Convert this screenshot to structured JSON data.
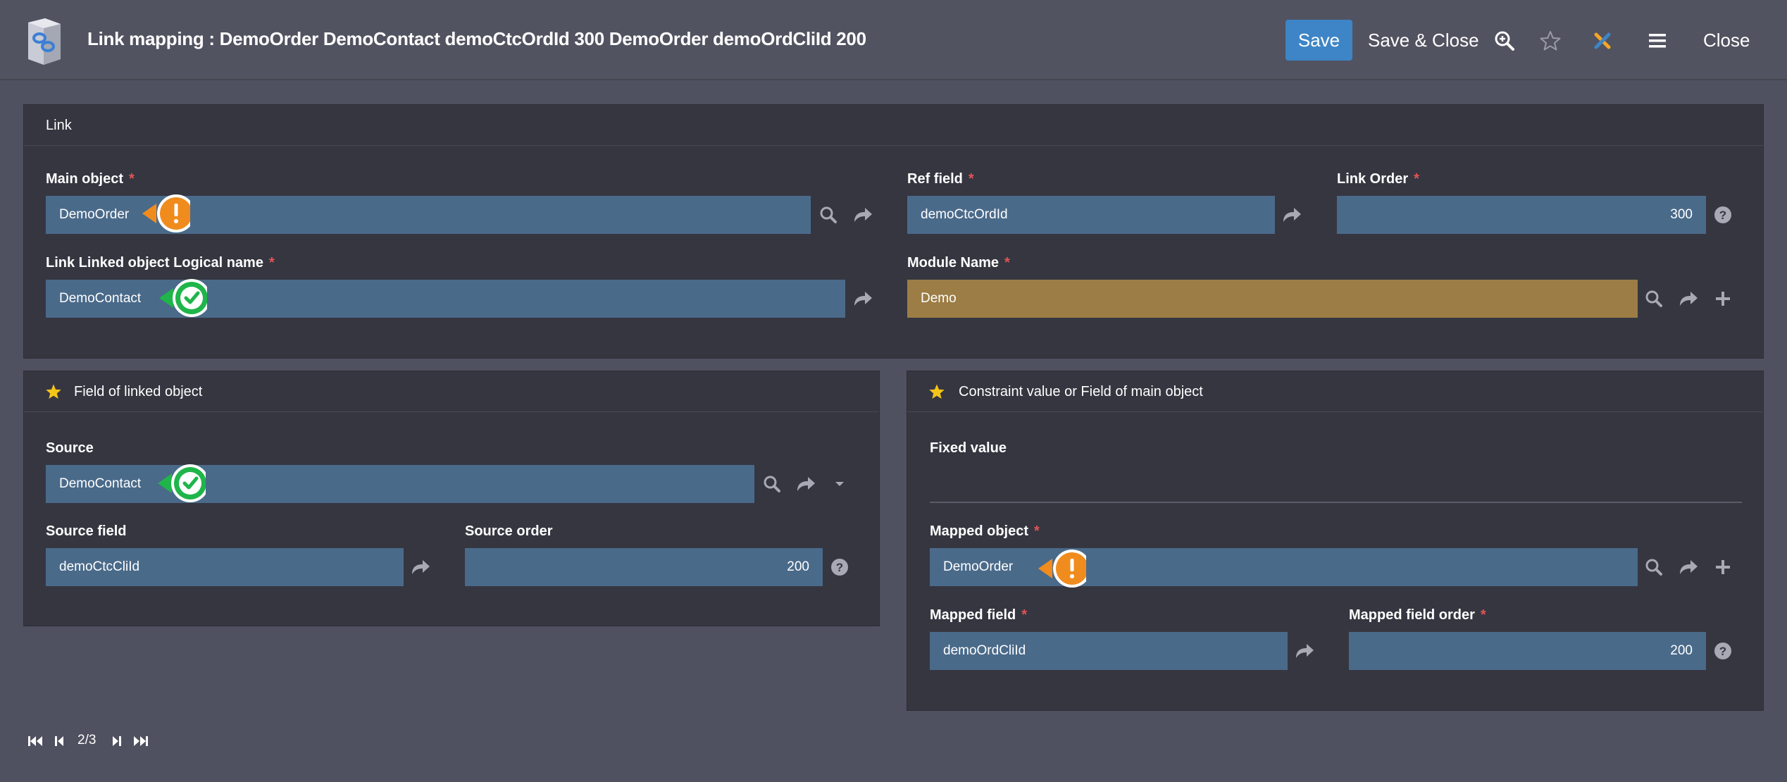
{
  "header": {
    "title": "Link mapping : DemoOrder DemoContact demoCtcOrdId 300 DemoOrder demoOrdCliId 200",
    "save_label": "Save",
    "save_close_label": "Save & Close",
    "close_label": "Close",
    "icons": [
      "zoom-icon",
      "star-icon",
      "tools-icon",
      "menu-icon"
    ]
  },
  "link_panel": {
    "title": "Link",
    "main_object": {
      "label": "Main object",
      "required": "*",
      "value": "DemoOrder",
      "status": "warning"
    },
    "ref_field": {
      "label": "Ref field",
      "required": "*",
      "value": "demoCtcOrdId"
    },
    "link_order": {
      "label": "Link Order",
      "required": "*",
      "value": "300"
    },
    "linked_object": {
      "label": "Link Linked object Logical name",
      "required": "*",
      "value": "DemoContact",
      "status": "valid"
    },
    "module_name": {
      "label": "Module Name",
      "required": "*",
      "value": "Demo"
    }
  },
  "linked_field_panel": {
    "title": "Field of linked object",
    "source": {
      "label": "Source",
      "value": "DemoContact",
      "status": "valid"
    },
    "source_field": {
      "label": "Source field",
      "value": "demoCtcCliId"
    },
    "source_order": {
      "label": "Source order",
      "value": "200"
    }
  },
  "constraint_panel": {
    "title": "Constraint value or Field of main object",
    "fixed_value": {
      "label": "Fixed value",
      "value": ""
    },
    "mapped_object": {
      "label": "Mapped object",
      "required": "*",
      "value": "DemoOrder",
      "status": "warning"
    },
    "mapped_field": {
      "label": "Mapped field",
      "required": "*",
      "value": "demoOrdCliId"
    },
    "mapped_field_order": {
      "label": "Mapped field order",
      "required": "*",
      "value": "200"
    }
  },
  "pager": {
    "text": "2/3"
  },
  "colors": {
    "background": "#4f5060",
    "panel": "#363641",
    "field": "#4a6a8a",
    "module_field": "#9c7d45",
    "save_button": "#3d85c6",
    "warning_badge": "#f08c1e",
    "valid_badge": "#1fb54a",
    "required": "#e05555",
    "star": "#f5c518"
  }
}
